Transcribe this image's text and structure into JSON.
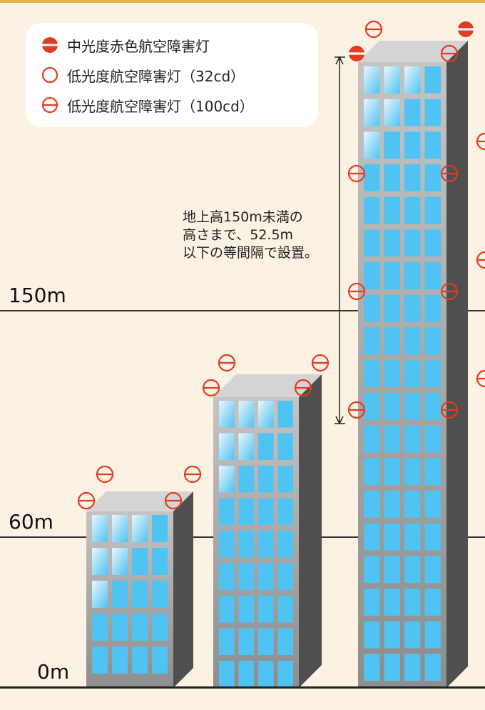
{
  "legend": {
    "items": [
      {
        "icon": "red-filled-disc-icon",
        "label": "中光度赤色航空障害灯"
      },
      {
        "icon": "red-ring-icon",
        "label": "低光度航空障害灯（32cd）"
      },
      {
        "icon": "red-ring-bar-icon",
        "label": "低光度航空障害灯（100cd）"
      }
    ]
  },
  "heights": {
    "h150": "150m",
    "h60": "60m",
    "h0": "0m"
  },
  "annotation": {
    "line1": "地上高150m未満の",
    "line2": "高さまで、52.5m",
    "line3": "以下の等間隔で設置。"
  },
  "colors": {
    "background": "#fbf2e4",
    "accent_bar": "#e6b24a",
    "light_red": "#e23b22",
    "building_face": "#a4a4a4",
    "building_side": "#4f4f4f",
    "building_roof": "#d4d4d4",
    "window_blue": "#4fc3f2"
  }
}
